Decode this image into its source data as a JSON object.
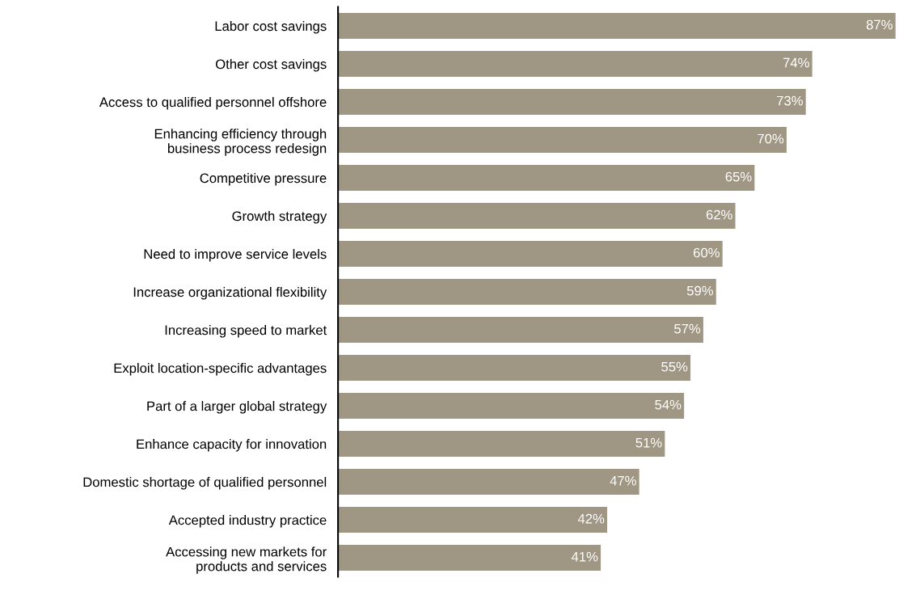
{
  "chart_data": {
    "type": "bar",
    "orientation": "horizontal",
    "categories": [
      "Labor cost savings",
      "Other cost savings",
      "Access to qualified personnel offshore",
      "Enhancing efficiency through\nbusiness process redesign",
      "Competitive pressure",
      "Growth strategy",
      "Need to improve service levels",
      "Increase organizational flexibility",
      "Increasing speed to market",
      "Exploit location-specific advantages",
      "Part of a larger global strategy",
      "Enhance capacity for innovation",
      "Domestic shortage of qualified personnel",
      "Accepted industry practice",
      "Accessing new markets for\nproducts and services"
    ],
    "values": [
      87,
      74,
      73,
      70,
      65,
      62,
      60,
      59,
      57,
      55,
      54,
      51,
      47,
      42,
      41
    ],
    "value_labels": [
      "87%",
      "74%",
      "73%",
      "70%",
      "65%",
      "62%",
      "60%",
      "59%",
      "57%",
      "55%",
      "54%",
      "51%",
      "47%",
      "42%",
      "41%"
    ],
    "color": "#a09684",
    "grid": false,
    "legend": false
  }
}
